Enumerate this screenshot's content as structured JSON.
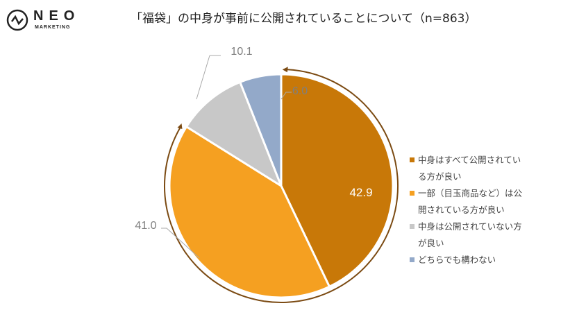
{
  "logo": {
    "name": "NEO",
    "sub": "MARKETING"
  },
  "chart_data": {
    "type": "pie",
    "title": "「福袋」の中身が事前に公開されていることについて（n=863）",
    "start_angle": "top",
    "direction": "clockwise",
    "legend_position": "right",
    "slices": [
      {
        "label": "中身はすべて公開されている方が良い",
        "value": 42.9,
        "color": "#C87808",
        "label_color": "#FFFFFF"
      },
      {
        "label": "一部（目玉商品など）は公開されている方が良い",
        "value": 41.0,
        "color": "#F5A021",
        "label_color": "#7F7F7F"
      },
      {
        "label": "中身は公開されていない方が良い",
        "value": 10.1,
        "color": "#C8C8C8",
        "label_color": "#7F7F7F"
      },
      {
        "label": "どちらでも構わない",
        "value": 6.0,
        "color": "#93A9C9",
        "label_color": "#7F7F7F"
      }
    ],
    "data_labels": [
      "42.9",
      "41.0",
      "10.1",
      "6.0"
    ],
    "arrow_color": "#7B4A12"
  }
}
